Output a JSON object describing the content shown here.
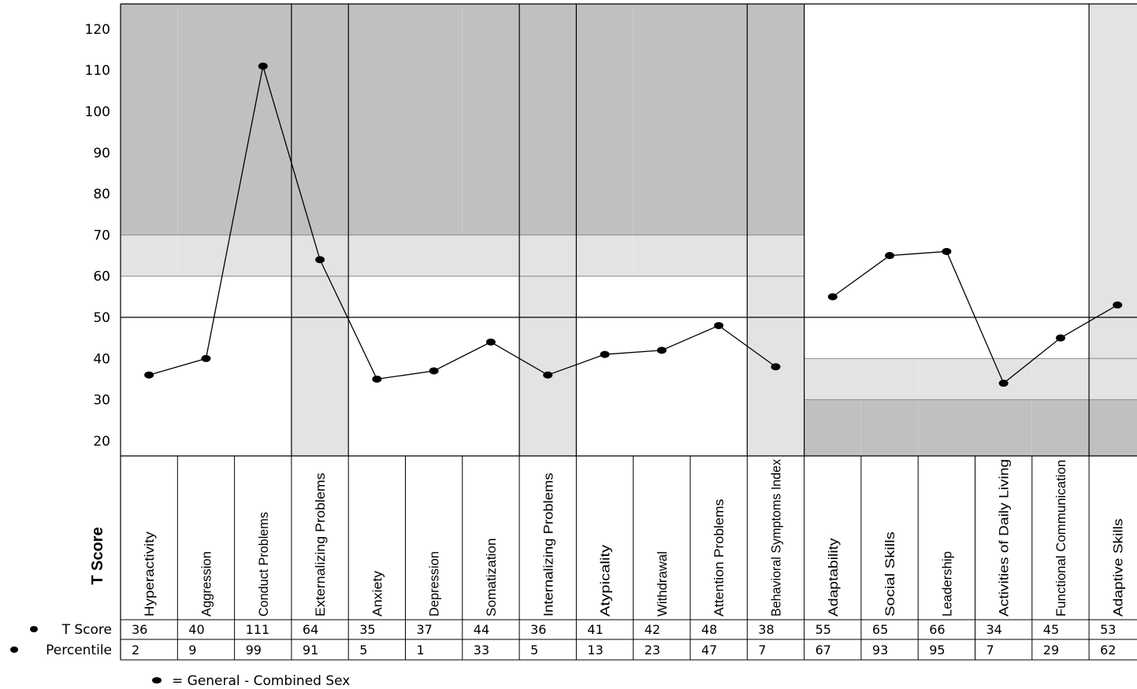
{
  "chart_data": {
    "type": "line",
    "ylabel": "T Score",
    "ylim": [
      16,
      126
    ],
    "yticks": [
      20,
      30,
      40,
      50,
      60,
      70,
      80,
      90,
      100,
      110,
      120
    ],
    "reference_line": 50,
    "categories": [
      "Hyperactivity",
      "Aggression",
      "Conduct Problems",
      "Externalizing Problems",
      "Anxiety",
      "Depression",
      "Somatization",
      "Internalizing Problems",
      "Atypicality",
      "Withdrawal",
      "Attention Problems",
      "Behavioral Symptoms Index",
      "Adaptability",
      "Social Skills",
      "Leadership",
      "Activities of Daily Living",
      "Functional Communication",
      "Adaptive Skills"
    ],
    "composite_columns": [
      "Externalizing Problems",
      "Internalizing Problems",
      "Behavioral Symptoms Index",
      "Adaptive Skills"
    ],
    "clinical_bands": {
      "clinical_scales": {
        "at_risk": [
          60,
          70
        ],
        "clinically_significant": [
          70,
          126
        ]
      },
      "adaptive_scales": {
        "at_risk": [
          30,
          40
        ],
        "clinically_significant": [
          16,
          30
        ]
      }
    },
    "series": [
      {
        "name": "General - Combined Sex",
        "label": "T Score",
        "values": [
          36,
          40,
          111,
          64,
          35,
          37,
          44,
          36,
          41,
          42,
          48,
          38,
          55,
          65,
          66,
          34,
          45,
          53
        ]
      }
    ],
    "percentile": {
      "label": "Percentile",
      "values": [
        2,
        9,
        99,
        91,
        5,
        1,
        33,
        5,
        13,
        23,
        47,
        7,
        67,
        93,
        95,
        7,
        29,
        62
      ]
    },
    "line_breaks_after": [
      "Behavioral Symptoms Index",
      "Adaptive Skills"
    ],
    "legend": {
      "symbol_text": "= General - Combined Sex",
      "position": "bottom-left"
    },
    "colors": {
      "clinical": "#c0c0c0",
      "at_risk": "#e3e3e3",
      "composite_background": "#e3e3e3",
      "normal": "#ffffff",
      "line": "#000000",
      "grid": "#000000"
    }
  }
}
